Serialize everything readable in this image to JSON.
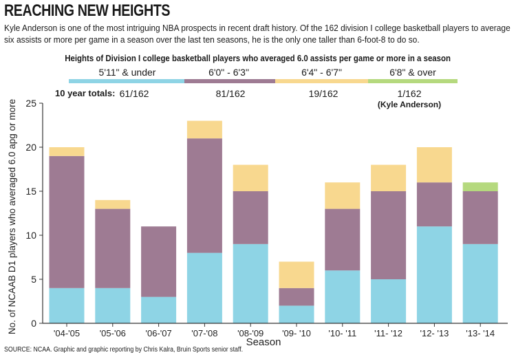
{
  "headline": "REACHING NEW HEIGHTS",
  "dek": "Kyle Anderson is one of the most intriguing NBA prospects in recent draft history. Of the 162 division I college basketball players to average six assists or more per game in a season over the last ten seasons, he is the only one taller than 6-foot-8 to do so.",
  "legend_title": "Heights of Division I college basketball players who averaged 6.0 assists per game or more in a season",
  "totals_label": "10 year totals:",
  "source": "SOURCE: NCAA. Graphic and graphic reporting by Chris Kalra, Bruin Sports senior staff.",
  "legend": [
    {
      "label": "5'11\" & under",
      "color": "#8ed4e5",
      "total": "61/162"
    },
    {
      "label": "6'0\" - 6'3\"",
      "color": "#9e7b93",
      "total": "81/162"
    },
    {
      "label": "6'4\" - 6'7\"",
      "color": "#f8d88f",
      "total": "19/162"
    },
    {
      "label": "6'8\" & over",
      "color": "#b5d97e",
      "total": "1/162",
      "note": "(Kyle Anderson)"
    }
  ],
  "chart_data": {
    "type": "bar",
    "stacked": true,
    "categories": [
      "'04-'05",
      "'05-'06",
      "'06-'07",
      "'07-'08",
      "'08-'09",
      "'09- '10",
      "'10- '11",
      "'11- '12",
      "'12- '13",
      "'13- '14"
    ],
    "series": [
      {
        "name": "5'11\" & under",
        "color": "#8ed4e5",
        "values": [
          4,
          4,
          3,
          8,
          9,
          2,
          6,
          5,
          11,
          9
        ]
      },
      {
        "name": "6'0\" - 6'3\"",
        "color": "#9e7b93",
        "values": [
          15,
          9,
          8,
          13,
          6,
          2,
          7,
          10,
          5,
          6
        ]
      },
      {
        "name": "6'4\" - 6'7\"",
        "color": "#f8d88f",
        "values": [
          1,
          1,
          0,
          2,
          3,
          3,
          3,
          3,
          4,
          0
        ]
      },
      {
        "name": "6'8\" & over",
        "color": "#b5d97e",
        "values": [
          0,
          0,
          0,
          0,
          0,
          0,
          0,
          0,
          0,
          1
        ]
      }
    ],
    "ylim": [
      0,
      25
    ],
    "yticks": [
      0,
      5,
      10,
      15,
      20,
      25
    ],
    "xlabel": "Season",
    "ylabel": "No. of NCAAB D1 players who averaged 6.0 apg or more",
    "title": "Heights of Division I college basketball players who averaged 6.0 assists per game or more in a season"
  }
}
